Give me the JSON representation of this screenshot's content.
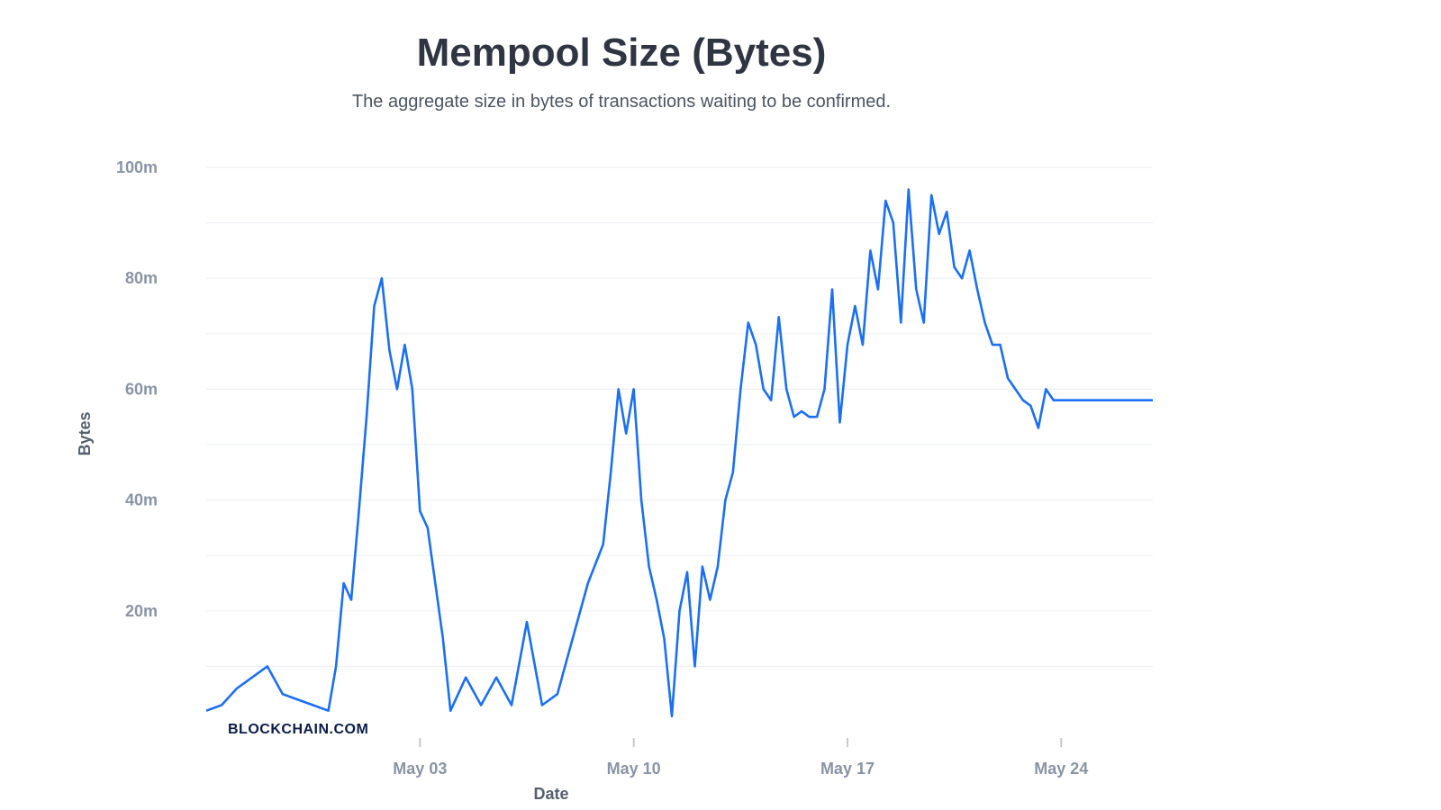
{
  "title": "Mempool Size (Bytes)",
  "subtitle": "The aggregate size in bytes of transactions waiting to be confirmed.",
  "watermark": "BLOCKCHAIN.COM",
  "chart_data": {
    "type": "line",
    "xlabel": "Date",
    "ylabel": "Bytes",
    "ylim": [
      0,
      100000000
    ],
    "xlim": [
      "2025-04-26",
      "2025-05-27"
    ],
    "y_ticks": [
      {
        "value": 20000000,
        "label": "20m"
      },
      {
        "value": 40000000,
        "label": "40m"
      },
      {
        "value": 60000000,
        "label": "60m"
      },
      {
        "value": 80000000,
        "label": "80m"
      },
      {
        "value": 100000000,
        "label": "100m"
      }
    ],
    "x_ticks": [
      {
        "date": "2025-05-03",
        "label": "May 03"
      },
      {
        "date": "2025-05-10",
        "label": "May 10"
      },
      {
        "date": "2025-05-17",
        "label": "May 17"
      },
      {
        "date": "2025-05-24",
        "label": "May 24"
      }
    ],
    "grid": true,
    "line_color": "#1a6ff5",
    "series": [
      {
        "name": "",
        "x": [
          "2025-04-26",
          "2025-04-26T12",
          "2025-04-27",
          "2025-04-27T12",
          "2025-04-28",
          "2025-04-28T12",
          "2025-04-29",
          "2025-04-29T12",
          "2025-04-30",
          "2025-04-30T06",
          "2025-04-30T12",
          "2025-04-30T18",
          "2025-05-01",
          "2025-05-01T06",
          "2025-05-01T12",
          "2025-05-01T18",
          "2025-05-02",
          "2025-05-02T06",
          "2025-05-02T12",
          "2025-05-02T18",
          "2025-05-03",
          "2025-05-03T06",
          "2025-05-03T12",
          "2025-05-03T18",
          "2025-05-04",
          "2025-05-04T12",
          "2025-05-05",
          "2025-05-05T12",
          "2025-05-06",
          "2025-05-06T12",
          "2025-05-07",
          "2025-05-07T12",
          "2025-05-08",
          "2025-05-08T12",
          "2025-05-09",
          "2025-05-09T06",
          "2025-05-09T12",
          "2025-05-09T18",
          "2025-05-10",
          "2025-05-10T06",
          "2025-05-10T12",
          "2025-05-10T18",
          "2025-05-11",
          "2025-05-11T06",
          "2025-05-11T12",
          "2025-05-11T18",
          "2025-05-12",
          "2025-05-12T06",
          "2025-05-12T12",
          "2025-05-12T18",
          "2025-05-13",
          "2025-05-13T06",
          "2025-05-13T12",
          "2025-05-13T18",
          "2025-05-14",
          "2025-05-14T06",
          "2025-05-14T12",
          "2025-05-14T18",
          "2025-05-15",
          "2025-05-15T06",
          "2025-05-15T12",
          "2025-05-15T18",
          "2025-05-16",
          "2025-05-16T06",
          "2025-05-16T12",
          "2025-05-16T18",
          "2025-05-17",
          "2025-05-17T06",
          "2025-05-17T12",
          "2025-05-17T18",
          "2025-05-18",
          "2025-05-18T06",
          "2025-05-18T12",
          "2025-05-18T18",
          "2025-05-19",
          "2025-05-19T06",
          "2025-05-19T12",
          "2025-05-19T18",
          "2025-05-20",
          "2025-05-20T06",
          "2025-05-20T12",
          "2025-05-20T18",
          "2025-05-21",
          "2025-05-21T06",
          "2025-05-21T12",
          "2025-05-21T18",
          "2025-05-22",
          "2025-05-22T06",
          "2025-05-22T12",
          "2025-05-22T18",
          "2025-05-23",
          "2025-05-23T06",
          "2025-05-23T12",
          "2025-05-23T18",
          "2025-05-24",
          "2025-05-24T06",
          "2025-05-24T12",
          "2025-05-24T18",
          "2025-05-25",
          "2025-05-25T06",
          "2025-05-25T12",
          "2025-05-25T18",
          "2025-05-26",
          "2025-05-26T06",
          "2025-05-26T12",
          "2025-05-26T18",
          "2025-05-27"
        ],
        "y": [
          2000000,
          3000000,
          6000000,
          8000000,
          10000000,
          5000000,
          4000000,
          3000000,
          2000000,
          10000000,
          25000000,
          22000000,
          38000000,
          55000000,
          75000000,
          80000000,
          67000000,
          60000000,
          68000000,
          60000000,
          38000000,
          35000000,
          25000000,
          15000000,
          2000000,
          8000000,
          3000000,
          8000000,
          3000000,
          18000000,
          3000000,
          5000000,
          15000000,
          25000000,
          32000000,
          45000000,
          60000000,
          52000000,
          60000000,
          40000000,
          28000000,
          22000000,
          15000000,
          1000000,
          20000000,
          27000000,
          10000000,
          28000000,
          22000000,
          28000000,
          40000000,
          45000000,
          60000000,
          72000000,
          68000000,
          60000000,
          58000000,
          73000000,
          60000000,
          55000000,
          56000000,
          55000000,
          55000000,
          60000000,
          78000000,
          54000000,
          68000000,
          75000000,
          68000000,
          85000000,
          78000000,
          94000000,
          90000000,
          72000000,
          96000000,
          78000000,
          72000000,
          95000000,
          88000000,
          92000000,
          82000000,
          80000000,
          85000000,
          78000000,
          72000000,
          68000000,
          68000000,
          62000000,
          60000000,
          58000000,
          57000000,
          53000000,
          60000000,
          58000000,
          58000000,
          58000000,
          58000000,
          58000000,
          58000000,
          58000000,
          58000000,
          58000000,
          58000000,
          58000000,
          58000000,
          58000000,
          58000000
        ]
      }
    ]
  }
}
